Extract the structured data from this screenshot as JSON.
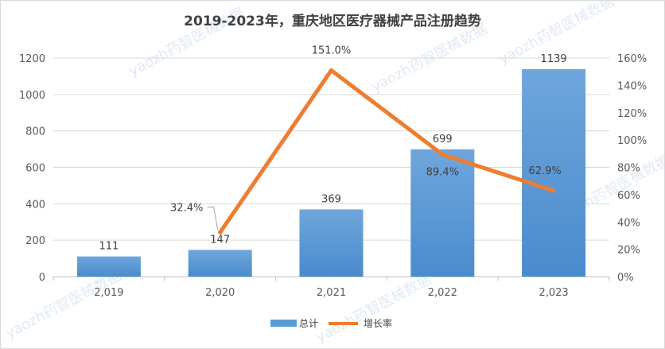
{
  "chart_data": {
    "type": "bar",
    "title": "2019-2023年，重庆地区医疗器械产品注册趋势",
    "categories": [
      "2,019",
      "2,020",
      "2,021",
      "2,022",
      "2,023"
    ],
    "series": [
      {
        "name": "总计",
        "type": "bar",
        "axis": "left",
        "color": "#5b9bd5",
        "values": [
          111,
          147,
          369,
          699,
          1139
        ],
        "labels": [
          "111",
          "147",
          "369",
          "699",
          "1139"
        ]
      },
      {
        "name": "增长率",
        "type": "line",
        "axis": "right",
        "color": "#ed7d31",
        "values": [
          null,
          32.4,
          151.0,
          89.4,
          62.9
        ],
        "labels": [
          "",
          "32.4%",
          "151.0%",
          "89.4%",
          "62.9%"
        ]
      }
    ],
    "y_left": {
      "min": 0,
      "max": 1200,
      "ticks": [
        "0",
        "200",
        "400",
        "600",
        "800",
        "1000",
        "1200"
      ]
    },
    "y_right": {
      "min": 0,
      "max": 160,
      "ticks": [
        "0%",
        "20%",
        "40%",
        "60%",
        "80%",
        "100%",
        "120%",
        "140%",
        "160%"
      ]
    },
    "grid": true,
    "legend_position": "bottom"
  },
  "watermark": "yaozh药智医械数据"
}
